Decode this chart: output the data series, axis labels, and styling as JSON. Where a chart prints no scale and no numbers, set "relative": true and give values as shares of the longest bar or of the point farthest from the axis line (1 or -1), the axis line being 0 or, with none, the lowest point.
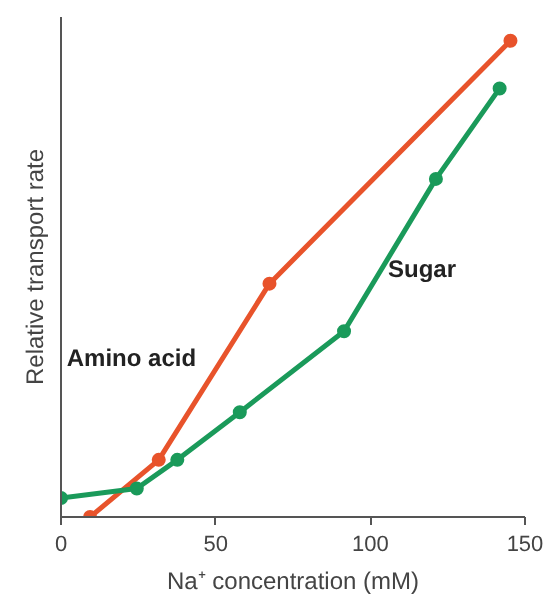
{
  "chart_data": {
    "type": "line",
    "relative": true,
    "xlabel": "Na⁺ concentration (mM)",
    "ylabel": "Relative transport rate",
    "xlim": [
      0,
      150
    ],
    "xticks": [
      0,
      50,
      100,
      150
    ],
    "grid": false,
    "marker": "circle",
    "line_style": "solid",
    "series": [
      {
        "name": "Amino acid",
        "color": "#e8532b",
        "x": [
          9.4,
          31.6,
          67.4,
          145.3
        ],
        "values": [
          0,
          0.12,
          0.49,
          1
        ]
      },
      {
        "name": "Sugar",
        "color": "#1a9a5a",
        "x": [
          0,
          24.5,
          37.6,
          57.8,
          91.5,
          121.2,
          141.8
        ],
        "values": [
          0.04,
          0.06,
          0.12,
          0.22,
          0.39,
          0.71,
          0.9
        ]
      }
    ]
  }
}
